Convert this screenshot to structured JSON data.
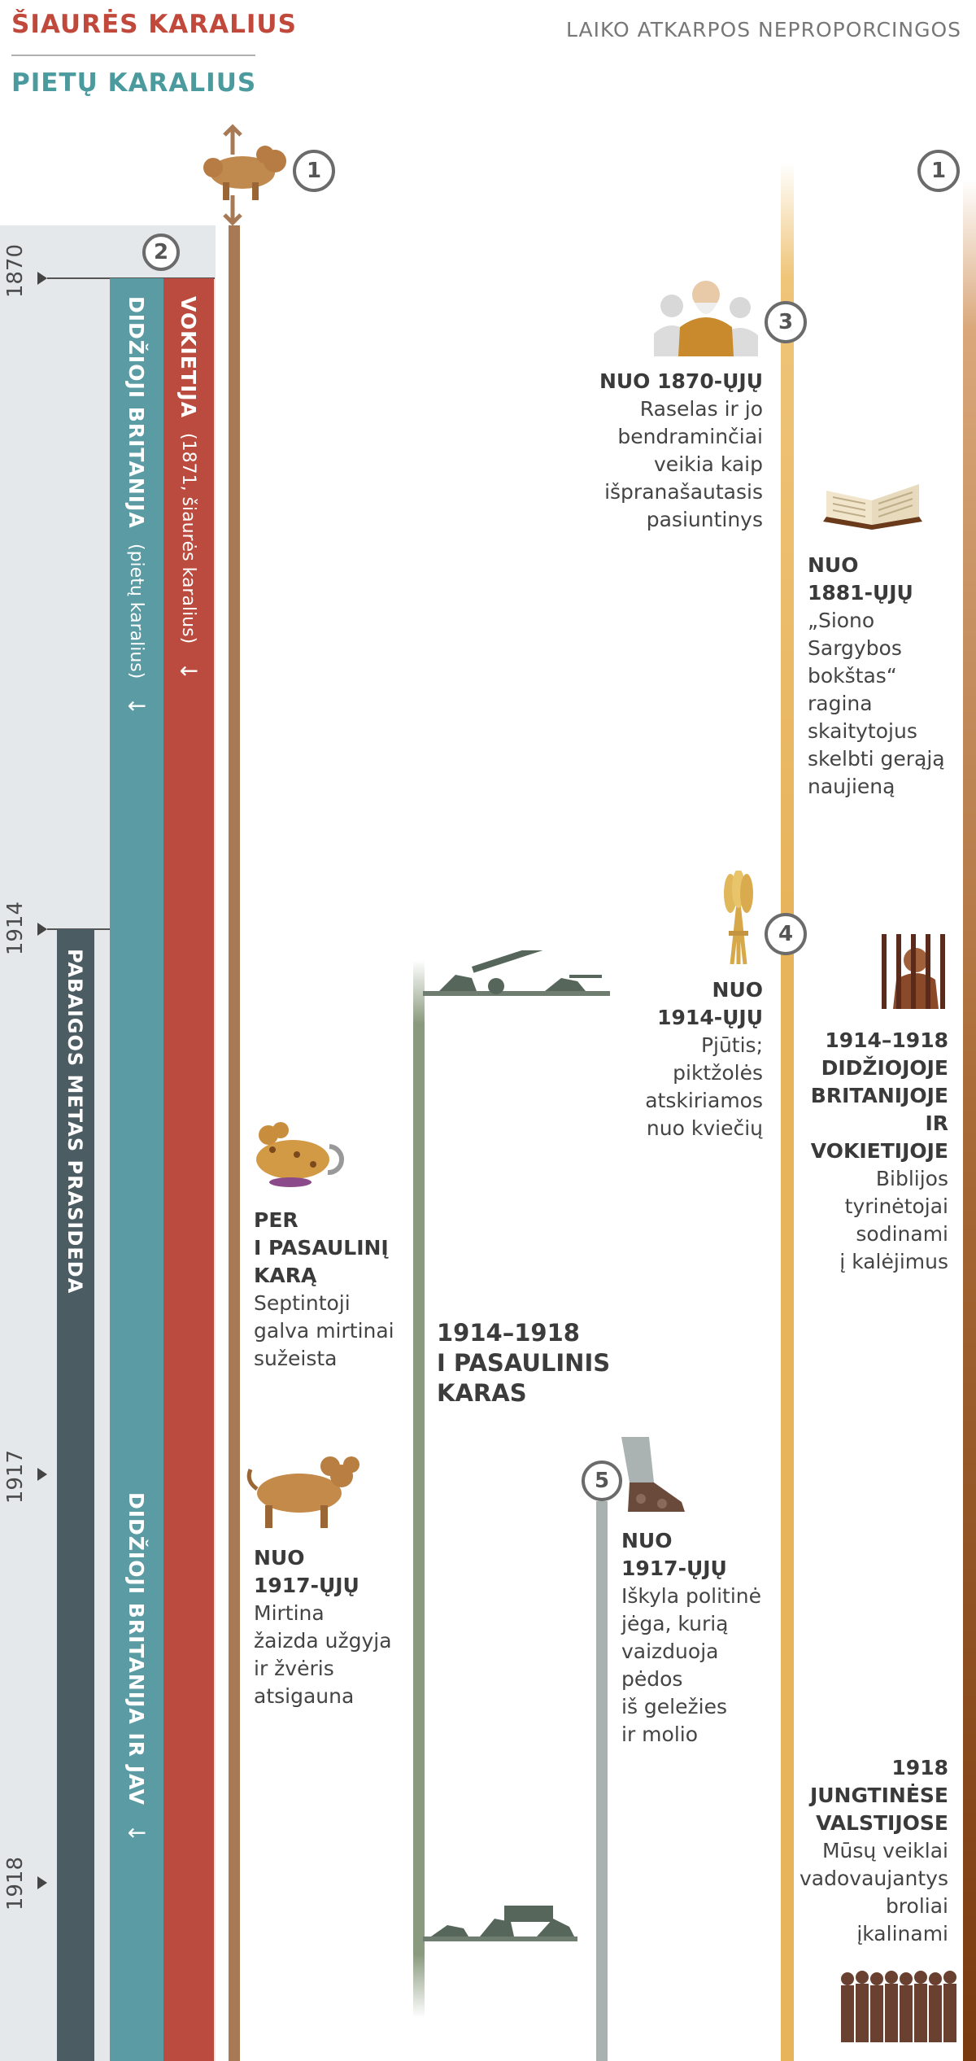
{
  "header": {
    "north_king": "ŠIAURĖS KARALIUS",
    "south_king": "PIETŲ KARALIUS",
    "scale_note": "LAIKO ATKARPOS NEPROPORCINGOS"
  },
  "years": [
    "1870",
    "1914",
    "1917",
    "1918"
  ],
  "bands": {
    "germany_title": "VOKIETIJA",
    "germany_sub": "(1871, šiaurės karalius)",
    "britain_title": "DIDŽIOJI BRITANIJA",
    "britain_sub": "(pietų karalius)",
    "end_times": "PABAIGOS METAS PRASIDEDA",
    "britain_usa": "DIDŽIOJI BRITANIJA IR JAV",
    "arrow": "↓"
  },
  "markers": {
    "m1": "1",
    "m2": "2",
    "m3": "3",
    "m4": "4",
    "m5": "5"
  },
  "events": {
    "russell": {
      "heading": "NUO 1870-ŲJŲ",
      "lines": [
        "Raselas ir jo",
        "bendraminčiai",
        "veikia kaip",
        "išpranašautasis",
        "pasiuntinys"
      ]
    },
    "watchtower": {
      "heading_lines": [
        "NUO",
        "1881-ŲJŲ"
      ],
      "lines": [
        "„Siono",
        "Sargybos",
        "bokštas“",
        "ragina",
        "skaitytojus",
        "skelbti gerąją",
        "naujieną"
      ]
    },
    "harvest": {
      "heading_lines": [
        "NUO",
        "1914-ŲJŲ"
      ],
      "lines": [
        "Pjūtis;",
        "piktžolės",
        "atskiriamos",
        "nuo kviečių"
      ]
    },
    "imprison_uk": {
      "heading_lines": [
        "1914–1918",
        "DIDŽIOJOJE",
        "BRITANIJOJE",
        "IR",
        "VOKIETIJOJE"
      ],
      "lines": [
        "Biblijos",
        "tyrinėtojai",
        "sodinami",
        "į kalėjimus"
      ]
    },
    "wound": {
      "heading_lines": [
        "PER",
        "I PASAULINĮ",
        "KARĄ"
      ],
      "lines": [
        "Septintoji",
        "galva mirtinai",
        "sužeista"
      ]
    },
    "ww1": {
      "lines": [
        "1914–1918",
        "I PASAULINIS",
        "KARAS"
      ]
    },
    "healed": {
      "heading_lines": [
        "NUO",
        "1917-ŲJŲ"
      ],
      "lines": [
        "Mirtina",
        "žaizda užgyja",
        "ir žvėris",
        "atsigauna"
      ]
    },
    "feet": {
      "heading_lines": [
        "NUO",
        "1917-ŲJŲ"
      ],
      "lines": [
        "Iškyla politinė",
        "jėga, kurią",
        "vaizduoja",
        "pėdos",
        "iš geležies",
        "ir molio"
      ]
    },
    "imprison_us": {
      "heading_lines": [
        "1918",
        "JUNGTINĖSE",
        "VALSTIJOSE"
      ],
      "lines": [
        "Mūsų veiklai",
        "vadovaujantys",
        "broliai",
        "įkalinami"
      ]
    }
  },
  "icons": [
    "beast-icon",
    "russell-icon",
    "bible-icon",
    "wheat-icon",
    "prisoner-icon",
    "wounded-beast-icon",
    "soldiers-icon",
    "healed-beast-icon",
    "feet-icon",
    "brothers-icon"
  ],
  "colors": {
    "north": "#c0493c",
    "south": "#4a9a9e",
    "germany_band": "#bb4b3e",
    "britain_band": "#5b9ba3",
    "end_band": "#4b5c63",
    "beast_stem": "#a77a55",
    "war_stem": "#8a9a7e",
    "gold_stem": "#e7b35b",
    "brown_stem": "#8a4a20"
  }
}
